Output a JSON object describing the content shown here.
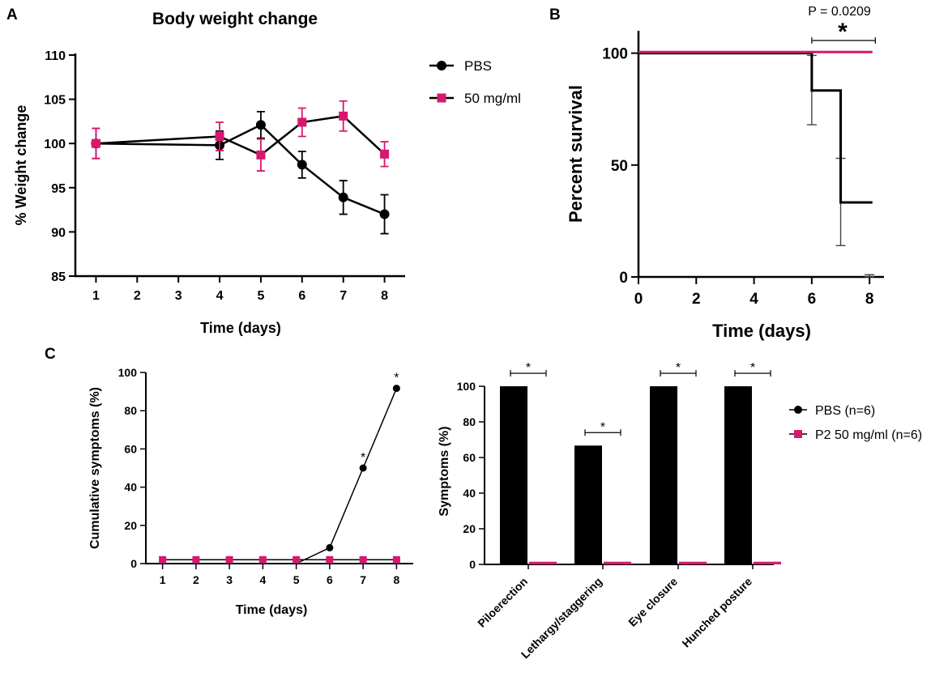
{
  "colors": {
    "pbs": "#000000",
    "drug": "#d6186e",
    "error": "#444444"
  },
  "chart_data": [
    {
      "panel": "A",
      "type": "line",
      "title": "Body weight change",
      "xlabel": "Time (days)",
      "ylabel": "% Weight change",
      "xlim": [
        0.5,
        8.5
      ],
      "ylim": [
        85,
        110
      ],
      "xticks": [
        1,
        2,
        3,
        4,
        5,
        6,
        7,
        8
      ],
      "yticks": [
        85,
        90,
        95,
        100,
        105,
        110
      ],
      "legend": [
        "PBS",
        "50 mg/ml"
      ],
      "series": [
        {
          "name": "PBS",
          "marker": "circle",
          "x": [
            1,
            4,
            5,
            6,
            7,
            8
          ],
          "y": [
            100,
            99.8,
            102.1,
            97.6,
            93.9,
            92.0
          ],
          "err": [
            1.7,
            1.6,
            1.5,
            1.5,
            1.9,
            2.2
          ]
        },
        {
          "name": "50 mg/ml",
          "marker": "square",
          "x": [
            1,
            4,
            5,
            6,
            7,
            8
          ],
          "y": [
            100,
            100.8,
            98.7,
            102.4,
            103.1,
            98.8
          ],
          "err": [
            1.7,
            1.6,
            1.8,
            1.6,
            1.7,
            1.4
          ]
        }
      ]
    },
    {
      "panel": "B",
      "type": "line",
      "subtype": "survival-step",
      "xlabel": "Time (days)",
      "ylabel": "Percent survival",
      "xlim": [
        0,
        8.5
      ],
      "ylim": [
        0,
        110
      ],
      "xticks": [
        0,
        2,
        4,
        6,
        8
      ],
      "yticks": [
        0,
        50,
        100
      ],
      "annotation_p": "P = 0.0209",
      "annotation_star": "*",
      "series": [
        {
          "name": "PBS",
          "steps": [
            [
              0,
              100
            ],
            [
              6,
              100
            ],
            [
              6,
              83.3
            ],
            [
              7,
              83.3
            ],
            [
              7,
              33.3
            ],
            [
              8.1,
              33.3
            ]
          ],
          "errbars": [
            {
              "x": 6,
              "lo": 68,
              "hi": 99
            },
            {
              "x": 7,
              "lo": 14,
              "hi": 53
            },
            {
              "x": 8,
              "lo": 0,
              "hi": 1
            }
          ]
        },
        {
          "name": "50 mg/ml",
          "steps": [
            [
              0,
              100.5
            ],
            [
              8.1,
              100.5
            ]
          ]
        }
      ]
    },
    {
      "panel": "C-left",
      "type": "line",
      "xlabel": "Time (days)",
      "ylabel": "Cumulative symptoms (%)",
      "xlim": [
        0.5,
        8.5
      ],
      "ylim": [
        0,
        100
      ],
      "xticks": [
        1,
        2,
        3,
        4,
        5,
        6,
        7,
        8
      ],
      "yticks": [
        0,
        20,
        40,
        60,
        80,
        100
      ],
      "series": [
        {
          "name": "PBS",
          "marker": "circle",
          "x": [
            1,
            2,
            3,
            4,
            5,
            6,
            7,
            8
          ],
          "y": [
            0,
            0,
            0,
            0,
            0,
            8.3,
            50,
            91.7
          ],
          "sig": [
            "",
            "",
            "",
            "",
            "",
            "",
            "*",
            "*"
          ]
        },
        {
          "name": "P2 50 mg/ml",
          "marker": "square",
          "x": [
            1,
            2,
            3,
            4,
            5,
            6,
            7,
            8
          ],
          "y": [
            2,
            2,
            2,
            2,
            2,
            2,
            2,
            2
          ]
        }
      ]
    },
    {
      "panel": "C-right",
      "type": "bar",
      "ylabel": "Symptoms (%)",
      "ylim": [
        0,
        100
      ],
      "yticks": [
        0,
        20,
        40,
        60,
        80,
        100
      ],
      "categories": [
        "Piloerection",
        "Lethargy/staggering",
        "Eye closure",
        "Hunched posture"
      ],
      "legend": [
        "PBS (n=6)",
        "P2 50 mg/ml (n=6)"
      ],
      "series": [
        {
          "name": "PBS (n=6)",
          "values": [
            100,
            66.7,
            100,
            100
          ]
        },
        {
          "name": "P2 50 mg/ml (n=6)",
          "values": [
            1.5,
            1.5,
            1.5,
            1.5
          ]
        }
      ],
      "sig": [
        "*",
        "*",
        "*",
        "*"
      ]
    }
  ],
  "panel_labels": {
    "a": "A",
    "b": "B",
    "c": "C"
  }
}
